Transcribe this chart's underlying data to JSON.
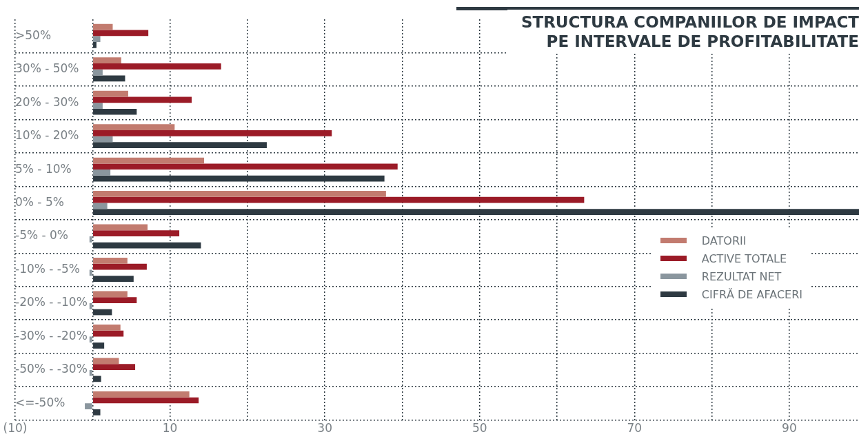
{
  "chart_data": {
    "type": "bar",
    "orientation": "horizontal",
    "title": "STRUCTURA COMPANIILOR DE IMPACT\nPE INTERVALE DE PROFITABILITATE",
    "categories": [
      ">50%",
      "30% - 50%",
      "20% - 30%",
      "10% - 20%",
      "5% - 10%",
      "0% - 5%",
      "-5% - 0%",
      "-10% - -5%",
      "-20% - -10%",
      "-30% - -20%",
      "-50% - -30%",
      "<=-50%"
    ],
    "series": [
      {
        "name": "DATORII",
        "color": "#c27b6f",
        "values": [
          2.6,
          3.7,
          4.6,
          10.6,
          14.4,
          37.9,
          7.1,
          4.5,
          4.5,
          3.6,
          3.4,
          12.5
        ]
      },
      {
        "name": "ACTIVE TOTALE",
        "color": "#9b1b27",
        "values": [
          7.2,
          16.6,
          12.8,
          30.9,
          39.4,
          63.5,
          11.2,
          7.0,
          5.7,
          4.0,
          5.5,
          13.7
        ]
      },
      {
        "name": "REZULTAT NET",
        "color": "#8a969e",
        "values": [
          1.0,
          1.3,
          1.3,
          2.6,
          2.3,
          1.9,
          -0.4,
          -0.4,
          -0.4,
          -0.4,
          -0.4,
          -1.0
        ]
      },
      {
        "name": "CIFRĂ DE AFACERI",
        "color": "#2e3a42",
        "values": [
          0.5,
          4.2,
          5.7,
          22.5,
          37.7,
          99,
          14.0,
          5.3,
          2.5,
          1.5,
          1.1,
          1.0
        ]
      }
    ],
    "xlim": [
      -10,
      99
    ],
    "xticks": [
      {
        "value": -10,
        "label": "(10)"
      },
      {
        "value": 0,
        "label": null
      },
      10,
      {
        "value": 20,
        "label": null
      },
      30,
      {
        "value": 40,
        "label": null
      },
      50,
      {
        "value": 60,
        "label": null
      },
      70,
      {
        "value": 80,
        "label": null
      },
      90
    ],
    "grid": true,
    "legend": "right"
  }
}
